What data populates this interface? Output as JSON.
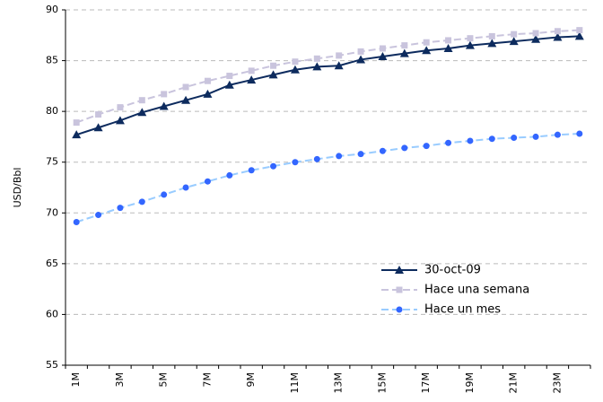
{
  "chart_data": {
    "type": "line",
    "y_label": "USD/Bbl",
    "categories": [
      "1M",
      null,
      "3M",
      null,
      "5M",
      null,
      "7M",
      null,
      "9M",
      null,
      "11M",
      null,
      "13M",
      null,
      "15M",
      null,
      "17M",
      null,
      "19M",
      null,
      "21M",
      null,
      "23M",
      null
    ],
    "series": [
      {
        "name": "30-oct-09",
        "color": "#0d2b5e",
        "marker_color": "#0d2b5e",
        "marker": "triangle",
        "dashed": false,
        "values": [
          77.7,
          78.4,
          79.1,
          79.9,
          80.5,
          81.1,
          81.7,
          82.6,
          83.1,
          83.6,
          84.1,
          84.4,
          84.5,
          85.1,
          85.4,
          85.7,
          86.0,
          86.2,
          86.5,
          86.7,
          86.9,
          87.1,
          87.3,
          87.4
        ]
      },
      {
        "name": "Hace una semana",
        "color": "#c9c4dd",
        "marker_color": "#c9c4dd",
        "marker": "square",
        "dashed": true,
        "values": [
          78.9,
          79.7,
          80.4,
          81.1,
          81.7,
          82.4,
          83.0,
          83.5,
          84.0,
          84.5,
          84.9,
          85.2,
          85.5,
          85.9,
          86.2,
          86.5,
          86.8,
          87.0,
          87.2,
          87.4,
          87.6,
          87.7,
          87.9,
          88.0
        ]
      },
      {
        "name": "Hace un mes",
        "color": "#99ccff",
        "marker_color": "#3366ff",
        "marker": "circle",
        "dashed": true,
        "values": [
          69.1,
          69.8,
          70.5,
          71.1,
          71.8,
          72.5,
          73.1,
          73.7,
          74.2,
          74.6,
          75.0,
          75.3,
          75.6,
          75.8,
          76.1,
          76.4,
          76.6,
          76.9,
          77.1,
          77.3,
          77.4,
          77.5,
          77.7,
          77.8
        ]
      }
    ],
    "ylim": [
      55,
      90
    ],
    "yticks": [
      55,
      60,
      65,
      70,
      75,
      80,
      85,
      90
    ],
    "grid": true,
    "legend": "lower right"
  }
}
